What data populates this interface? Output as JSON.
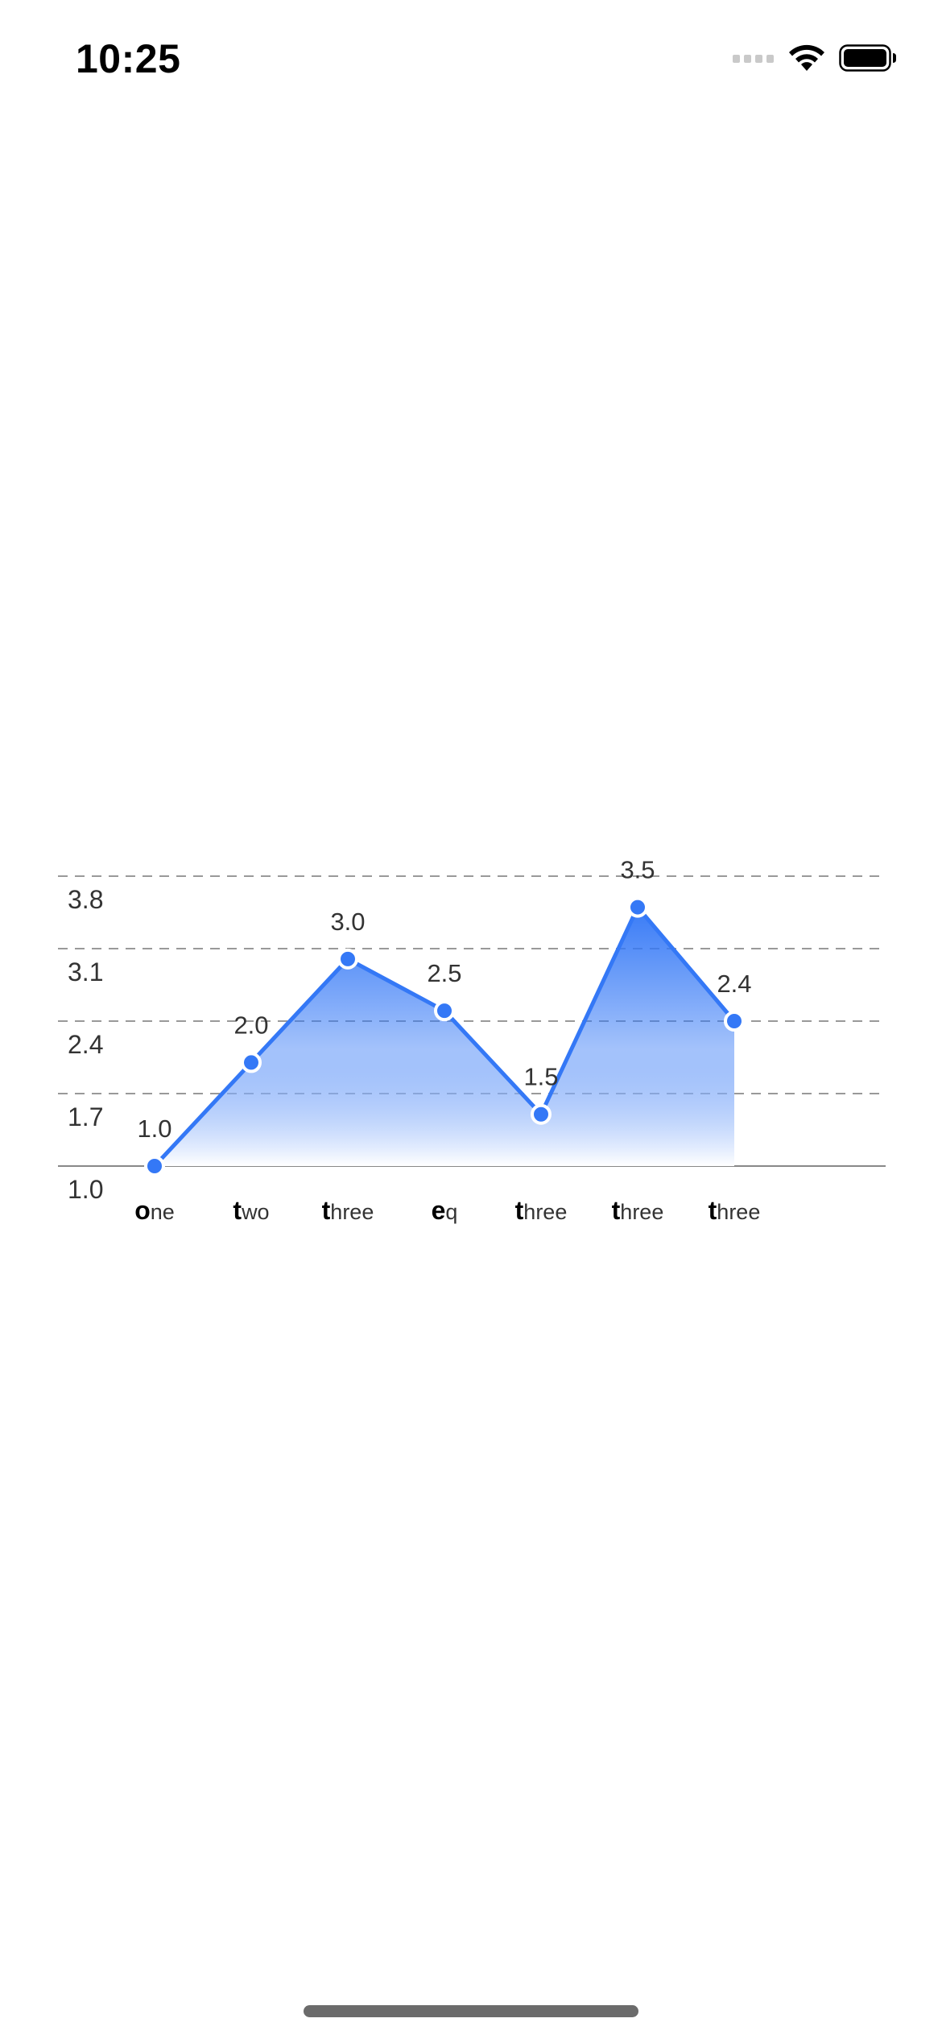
{
  "status_bar": {
    "time": "10:25",
    "icons": [
      "cellular-signal-icon",
      "wifi-icon",
      "battery-icon"
    ]
  },
  "chart_data": {
    "type": "area",
    "categories": [
      {
        "first": "o",
        "rest": "ne"
      },
      {
        "first": "t",
        "rest": "wo"
      },
      {
        "first": "t",
        "rest": "hree"
      },
      {
        "first": "e",
        "rest": "q"
      },
      {
        "first": "t",
        "rest": "hree"
      },
      {
        "first": "t",
        "rest": "hree"
      },
      {
        "first": "t",
        "rest": "hree"
      }
    ],
    "values": [
      1.0,
      2.0,
      3.0,
      2.5,
      1.5,
      3.5,
      2.4
    ],
    "value_labels": [
      "1.0",
      "2.0",
      "3.0",
      "2.5",
      "1.5",
      "3.5",
      "2.4"
    ],
    "y_ticks": [
      "1.0",
      "1.7",
      "2.4",
      "3.1",
      "3.8"
    ],
    "y_tick_values": [
      1.0,
      1.7,
      2.4,
      3.1,
      3.8
    ],
    "ylim": [
      1.0,
      3.8
    ],
    "grid": "dashed horizontal",
    "legend": "none",
    "colors": {
      "line": "#3478f6",
      "fill_top": "#3478f6",
      "fill_bottom": "#ffffff",
      "grid": "#999999",
      "axis": "#888888",
      "label": "#333333"
    }
  }
}
